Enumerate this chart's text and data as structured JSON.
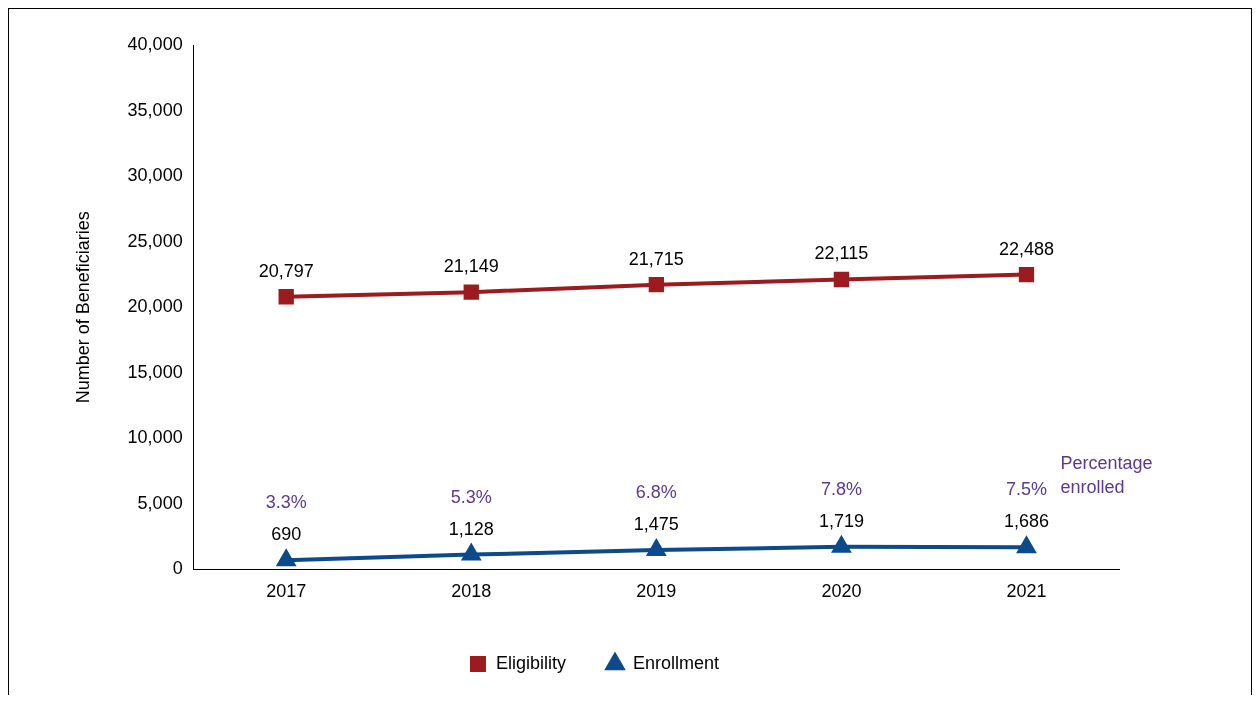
{
  "chart_data": {
    "type": "line",
    "ylabel": "Number of Beneficiaries",
    "categories": [
      "2017",
      "2018",
      "2019",
      "2020",
      "2021"
    ],
    "series": [
      {
        "name": "Eligibility",
        "color": "#9b1b1f",
        "marker": "square",
        "values": [
          20797,
          21149,
          21715,
          22115,
          22488
        ],
        "value_labels": [
          "20,797",
          "21,149",
          "21,715",
          "22,115",
          "22,488"
        ]
      },
      {
        "name": "Enrollment",
        "color": "#0c4a8c",
        "marker": "triangle",
        "values": [
          690,
          1128,
          1475,
          1719,
          1686
        ],
        "value_labels": [
          "690",
          "1,128",
          "1,475",
          "1,719",
          "1,686"
        ]
      }
    ],
    "ylim": [
      0,
      40000
    ],
    "yticks": [
      0,
      {
        "value": 5000,
        "label": "5,000"
      },
      {
        "value": 10000,
        "label": "10,000"
      },
      {
        "value": 15000,
        "label": "15,000"
      },
      {
        "value": 20000,
        "label": "20,000"
      },
      {
        "value": 25000,
        "label": "25,000"
      },
      {
        "value": 30000,
        "label": "30,000"
      },
      {
        "value": 35000,
        "label": "35,000"
      },
      {
        "value": 40000,
        "label": "40,000"
      }
    ],
    "grid": false,
    "legend": "bottom",
    "line_style": "solid",
    "annotations": [
      "3.3%",
      "5.3%",
      "6.8%",
      "7.8%",
      "7.5%",
      "Percentage enrolled"
    ]
  }
}
